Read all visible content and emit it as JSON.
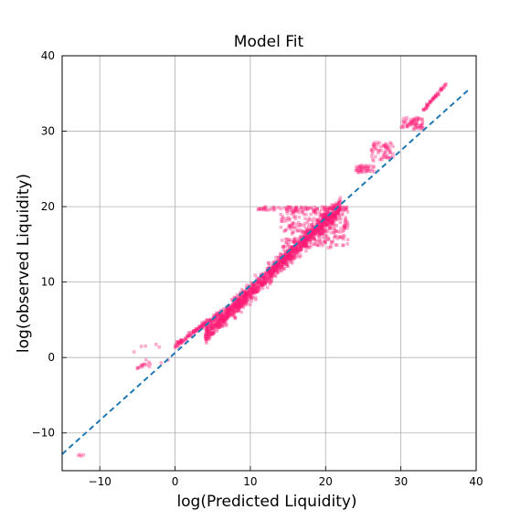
{
  "chart_data": {
    "type": "scatter",
    "title": "Model Fit",
    "xlabel": "log(Predicted Liquidity)",
    "ylabel": "log(observed Liquidity)",
    "xlim": [
      -15,
      40
    ],
    "ylim": [
      -15,
      40
    ],
    "xticks": [
      -10,
      0,
      10,
      20,
      30,
      40
    ],
    "yticks": [
      -10,
      0,
      10,
      20,
      30,
      40
    ],
    "xtick_labels": [
      "−10",
      "0",
      "10",
      "20",
      "30",
      "40"
    ],
    "ytick_labels": [
      "−10",
      "0",
      "10",
      "20",
      "30",
      "40"
    ],
    "grid": true,
    "point_color": "#ff1a75",
    "line_color": "#1f77b4",
    "fit_line": {
      "style": "dashed",
      "x": [
        -15,
        39
      ],
      "y": [
        -12.8,
        35.5
      ]
    },
    "point_clusters": [
      {
        "x_range": [
          4,
          22
        ],
        "y_range": [
          3,
          20
        ],
        "trend": "diagonal",
        "n": 1400
      },
      {
        "x_range": [
          0,
          6
        ],
        "y_range": [
          1.5,
          6
        ],
        "trend": "diagonal",
        "n": 120
      },
      {
        "x_range": [
          14,
          23
        ],
        "y_range": [
          14.5,
          20
        ],
        "trend": "band",
        "n": 300
      },
      {
        "x_range": [
          11,
          22
        ],
        "y_range": [
          19.5,
          20
        ],
        "trend": "row",
        "n": 60
      },
      {
        "x_range": [
          24,
          26.5
        ],
        "y_range": [
          24.5,
          25.5
        ],
        "trend": "blob",
        "n": 40
      },
      {
        "x_range": [
          26,
          29
        ],
        "y_range": [
          26,
          28.5
        ],
        "trend": "blob",
        "n": 60
      },
      {
        "x_range": [
          30,
          33
        ],
        "y_range": [
          30.3,
          31.8
        ],
        "trend": "blob",
        "n": 60
      },
      {
        "x_range": [
          33,
          36
        ],
        "y_range": [
          32.8,
          36.3
        ],
        "trend": "diagonal",
        "n": 50
      },
      {
        "x_range": [
          -5,
          -3
        ],
        "y_range": [
          -1.5,
          -0.8
        ],
        "trend": "row",
        "n": 12
      },
      {
        "x_range": [
          -13.5,
          -12
        ],
        "y_range": [
          -13.5,
          -12.5
        ],
        "trend": "blob",
        "n": 4
      },
      {
        "x_range": [
          -6,
          0
        ],
        "y_range": [
          -1,
          2
        ],
        "trend": "sparse",
        "n": 10
      }
    ]
  }
}
